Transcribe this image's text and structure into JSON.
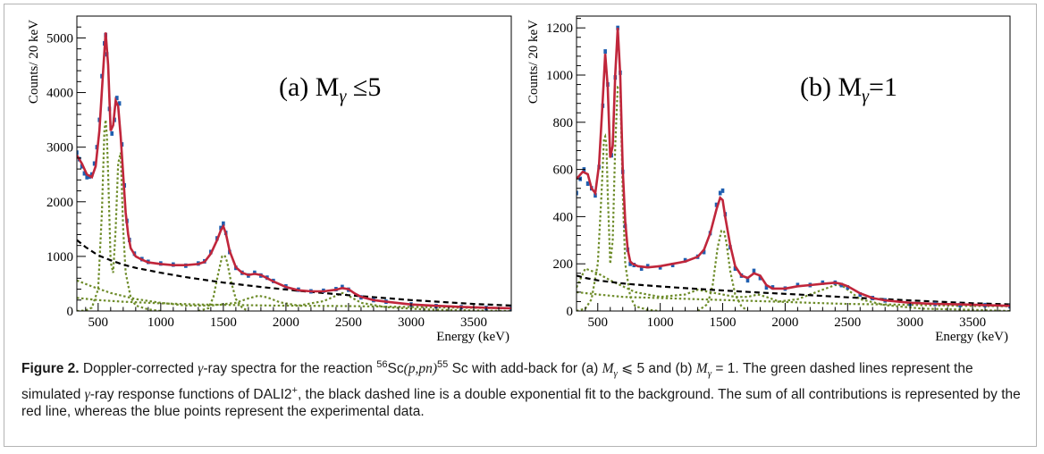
{
  "chart_data": [
    {
      "type": "line",
      "panel_label": "(a) M",
      "panel_label_sub": "γ",
      "panel_label_tail": " ≤5",
      "ylabel": "Counts/  20 keV",
      "xlabel": "Energy (keV)",
      "xlim": [
        330,
        3800
      ],
      "ylim": [
        0,
        5400
      ],
      "x_ticks": [
        500,
        1000,
        1500,
        2000,
        2500,
        3000,
        3500
      ],
      "y_ticks": [
        0,
        1000,
        2000,
        3000,
        4000,
        5000
      ],
      "colors": {
        "data": "#1f5fb0",
        "fit": "#c0263b",
        "response": "#6e8c2a",
        "background": "#000000"
      },
      "series": [
        {
          "role": "fit-total",
          "x": [
            330,
            370,
            410,
            450,
            480,
            510,
            540,
            560,
            580,
            600,
            620,
            640,
            660,
            680,
            700,
            720,
            740,
            760,
            800,
            850,
            900,
            1000,
            1100,
            1200,
            1300,
            1350,
            1400,
            1450,
            1480,
            1500,
            1520,
            1550,
            1600,
            1650,
            1700,
            1750,
            1800,
            1850,
            1900,
            2000,
            2100,
            2200,
            2300,
            2400,
            2450,
            2500,
            2550,
            2600,
            2700,
            2800,
            3000,
            3200,
            3400,
            3600,
            3800
          ],
          "y": [
            2850,
            2700,
            2500,
            2450,
            2650,
            3300,
            4400,
            5100,
            4500,
            3300,
            3400,
            3850,
            3750,
            3200,
            2500,
            1800,
            1400,
            1150,
            1000,
            940,
            890,
            860,
            840,
            840,
            860,
            900,
            1050,
            1300,
            1480,
            1550,
            1420,
            1100,
            800,
            700,
            660,
            680,
            660,
            600,
            540,
            440,
            380,
            360,
            360,
            390,
            420,
            400,
            320,
            260,
            200,
            170,
            120,
            95,
            75,
            60,
            50
          ]
        },
        {
          "role": "experimental-data",
          "x": [
            330,
            350,
            370,
            390,
            410,
            430,
            450,
            470,
            490,
            510,
            530,
            550,
            560,
            570,
            590,
            610,
            630,
            650,
            670,
            690,
            710,
            730,
            750,
            790,
            850,
            900,
            1000,
            1100,
            1200,
            1300,
            1350,
            1400,
            1450,
            1480,
            1500,
            1520,
            1550,
            1600,
            1650,
            1700,
            1750,
            1800,
            1850,
            1900,
            2000,
            2100,
            2200,
            2300,
            2400,
            2450,
            2500,
            2600,
            2700,
            2800,
            3000,
            3200,
            3400,
            3600,
            3800
          ],
          "y": [
            2900,
            2780,
            2650,
            2520,
            2450,
            2460,
            2500,
            2700,
            3000,
            3500,
            4300,
            4900,
            5050,
            4700,
            3700,
            3250,
            3500,
            3900,
            3800,
            3050,
            2300,
            1650,
            1300,
            1050,
            950,
            900,
            870,
            850,
            830,
            870,
            910,
            1080,
            1330,
            1520,
            1600,
            1430,
            1080,
            790,
            700,
            650,
            700,
            650,
            610,
            550,
            450,
            390,
            360,
            370,
            400,
            440,
            390,
            250,
            200,
            170,
            120,
            90,
            70,
            55,
            50
          ]
        },
        {
          "role": "simulated-response",
          "x": [
            330,
            400,
            450,
            500,
            530,
            550,
            560,
            570,
            580,
            600,
            620,
            640,
            660,
            680,
            700,
            720,
            760,
            800,
            900,
            1000
          ],
          "y": [
            0,
            10,
            60,
            400,
            1800,
            3300,
            3500,
            3200,
            2500,
            900,
            700,
            1500,
            2700,
            2900,
            1500,
            700,
            250,
            100,
            30,
            0
          ]
        },
        {
          "role": "simulated-response",
          "x": [
            1300,
            1380,
            1420,
            1460,
            1490,
            1510,
            1530,
            1560,
            1600,
            1650,
            1700
          ],
          "y": [
            0,
            50,
            250,
            700,
            1000,
            1020,
            900,
            550,
            220,
            60,
            0
          ]
        },
        {
          "role": "simulated-response",
          "x": [
            330,
            450,
            600,
            800,
            1000,
            1200,
            1400,
            1600,
            1700,
            1780,
            1850,
            1950,
            2100,
            2300,
            2400,
            2450,
            2500,
            2600,
            2800,
            3100,
            3500,
            3800
          ],
          "y": [
            560,
            450,
            330,
            220,
            150,
            100,
            100,
            150,
            230,
            280,
            250,
            160,
            100,
            180,
            280,
            330,
            280,
            150,
            70,
            30,
            10,
            0
          ]
        },
        {
          "role": "simulated-response",
          "x": [
            330,
            500,
            700,
            1000,
            1300,
            1600,
            1900,
            2200,
            2500,
            2800,
            3100,
            3400,
            3800
          ],
          "y": [
            240,
            200,
            170,
            140,
            120,
            110,
            100,
            95,
            90,
            80,
            70,
            60,
            50
          ]
        },
        {
          "role": "background-fit",
          "x": [
            330,
            400,
            500,
            600,
            700,
            800,
            1000,
            1200,
            1500,
            1800,
            2100,
            2500,
            3000,
            3500,
            3800
          ],
          "y": [
            1300,
            1170,
            1020,
            930,
            850,
            790,
            700,
            620,
            520,
            440,
            370,
            290,
            200,
            130,
            100
          ]
        }
      ]
    },
    {
      "type": "line",
      "panel_label": "(b) M",
      "panel_label_sub": "γ",
      "panel_label_tail": "=1",
      "ylabel": "Counts/  20 keV",
      "xlabel": "Energy (keV)",
      "xlim": [
        330,
        3800
      ],
      "ylim": [
        0,
        1250
      ],
      "x_ticks": [
        500,
        1000,
        1500,
        2000,
        2500,
        3000,
        3500
      ],
      "y_ticks": [
        0,
        200,
        400,
        600,
        800,
        1000,
        1200
      ],
      "colors": {
        "data": "#1f5fb0",
        "fit": "#c0263b",
        "response": "#6e8c2a",
        "background": "#000000"
      },
      "series": [
        {
          "role": "fit-total",
          "x": [
            330,
            380,
            420,
            450,
            480,
            510,
            540,
            560,
            580,
            600,
            620,
            640,
            660,
            680,
            700,
            720,
            740,
            760,
            780,
            820,
            900,
            1000,
            1100,
            1200,
            1300,
            1350,
            1400,
            1450,
            1480,
            1500,
            1520,
            1560,
            1600,
            1650,
            1700,
            1750,
            1800,
            1850,
            1900,
            2000,
            2100,
            2200,
            2300,
            2400,
            2450,
            2500,
            2550,
            2600,
            2700,
            2800,
            3000,
            3200,
            3400,
            3600,
            3800
          ],
          "y": [
            560,
            590,
            580,
            520,
            500,
            620,
            900,
            1090,
            950,
            650,
            700,
            1000,
            1200,
            1000,
            600,
            380,
            260,
            210,
            200,
            190,
            185,
            190,
            200,
            210,
            230,
            260,
            330,
            430,
            480,
            470,
            400,
            280,
            190,
            150,
            140,
            160,
            150,
            110,
            95,
            95,
            105,
            110,
            115,
            120,
            115,
            105,
            90,
            75,
            55,
            45,
            35,
            30,
            28,
            25,
            22
          ]
        },
        {
          "role": "experimental-data",
          "x": [
            330,
            360,
            390,
            420,
            450,
            480,
            510,
            540,
            560,
            580,
            610,
            640,
            660,
            680,
            700,
            720,
            740,
            760,
            790,
            850,
            900,
            1000,
            1100,
            1200,
            1300,
            1350,
            1400,
            1450,
            1480,
            1500,
            1520,
            1560,
            1600,
            1650,
            1700,
            1750,
            1800,
            1850,
            1900,
            2000,
            2100,
            2200,
            2300,
            2400,
            2450,
            2500,
            2600,
            2700,
            2800,
            3000,
            3200,
            3400,
            3600,
            3800
          ],
          "y": [
            500,
            560,
            600,
            540,
            520,
            490,
            610,
            870,
            1100,
            960,
            660,
            990,
            1200,
            1010,
            590,
            360,
            260,
            200,
            195,
            180,
            190,
            185,
            195,
            215,
            230,
            250,
            330,
            450,
            500,
            510,
            410,
            270,
            180,
            150,
            130,
            170,
            140,
            100,
            100,
            95,
            110,
            110,
            120,
            120,
            110,
            100,
            70,
            55,
            45,
            30,
            30,
            25,
            25,
            20
          ]
        },
        {
          "role": "simulated-response",
          "x": [
            330,
            400,
            450,
            500,
            530,
            550,
            560,
            570,
            580,
            600,
            620,
            640,
            660,
            680,
            700,
            720,
            760,
            800,
            900,
            1000
          ],
          "y": [
            0,
            10,
            50,
            200,
            500,
            730,
            740,
            700,
            500,
            200,
            300,
            700,
            950,
            950,
            500,
            200,
            60,
            20,
            5,
            0
          ]
        },
        {
          "role": "simulated-response",
          "x": [
            1300,
            1380,
            1420,
            1460,
            1490,
            1510,
            1530,
            1560,
            1600,
            1650,
            1700
          ],
          "y": [
            0,
            30,
            110,
            270,
            340,
            340,
            290,
            170,
            70,
            20,
            0
          ]
        },
        {
          "role": "simulated-response",
          "x": [
            330,
            400,
            450,
            500,
            600,
            800,
            1000,
            1200,
            1300,
            1400,
            1600,
            1700,
            1780,
            1850,
            1950,
            2100,
            2300,
            2400,
            2450,
            2500,
            2600,
            2800,
            3100,
            3500,
            3800
          ],
          "y": [
            100,
            180,
            170,
            160,
            130,
            80,
            60,
            70,
            90,
            80,
            60,
            60,
            70,
            60,
            40,
            50,
            90,
            110,
            110,
            90,
            50,
            25,
            10,
            5,
            0
          ]
        },
        {
          "role": "simulated-response",
          "x": [
            330,
            500,
            700,
            1000,
            1300,
            1600,
            1900,
            2200,
            2500,
            2800,
            3100,
            3400,
            3800
          ],
          "y": [
            80,
            70,
            60,
            55,
            50,
            45,
            40,
            35,
            30,
            28,
            25,
            22,
            20
          ]
        },
        {
          "role": "background-fit",
          "x": [
            330,
            400,
            500,
            600,
            700,
            800,
            1000,
            1200,
            1500,
            1800,
            2100,
            2500,
            3000,
            3500,
            3800
          ],
          "y": [
            150,
            140,
            130,
            123,
            117,
            112,
            104,
            97,
            87,
            78,
            70,
            58,
            45,
            33,
            28
          ]
        }
      ]
    }
  ],
  "caption": {
    "label": "Figure 2.",
    "segments": [
      {
        "t": " Doppler-corrected "
      },
      {
        "t": "γ",
        "i": true
      },
      {
        "t": "-ray spectra for the reaction "
      },
      {
        "t": "56",
        "sup": true
      },
      {
        "t": "Sc"
      },
      {
        "t": "(p,pn)",
        "i": true
      },
      {
        "t": "55",
        "sup": true
      },
      {
        "t": " Sc with add-back for (a) "
      },
      {
        "t": "M",
        "i": true
      },
      {
        "t": "γ",
        "i": true,
        "sub": true
      },
      {
        "t": " ⩽ 5 and (b) "
      },
      {
        "t": "M",
        "i": true
      },
      {
        "t": "γ",
        "i": true,
        "sub": true
      },
      {
        "t": " = 1. The green dashed lines represent the simulated "
      },
      {
        "t": "γ",
        "i": true
      },
      {
        "t": "-ray response functions of DALI2"
      },
      {
        "t": "+",
        "sup": true
      },
      {
        "t": ", the black dashed line is a double exponential fit to the background. The sum of all contributions is represented by the red line, whereas the blue points represent the experimental data."
      }
    ]
  }
}
